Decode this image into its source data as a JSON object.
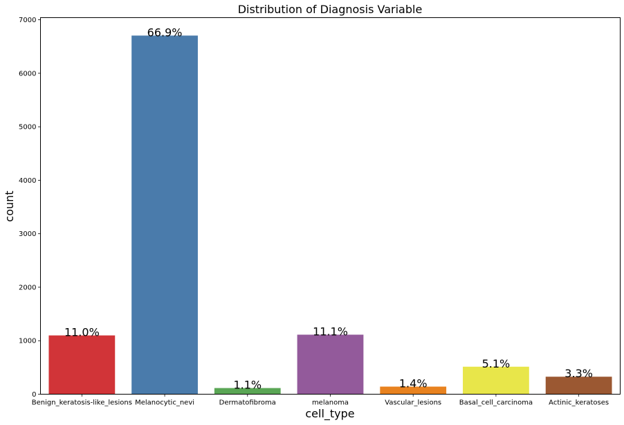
{
  "chart_data": {
    "type": "bar",
    "title": "Distribution of Diagnosis Variable",
    "xlabel": "cell_type",
    "ylabel": "count",
    "categories": [
      "Benign_keratosis-like_lesions",
      "Melanocytic_nevi",
      "Dermatofibroma",
      "melanoma",
      "Vascular_lesions",
      "Basal_cell_carcinoma",
      "Actinic_keratoses"
    ],
    "values": [
      1099,
      6705,
      115,
      1113,
      142,
      514,
      327
    ],
    "data_labels": [
      "11.0%",
      "66.9%",
      "1.1%",
      "11.1%",
      "1.4%",
      "5.1%",
      "3.3%"
    ],
    "colors": [
      "#d13438",
      "#4a7bab",
      "#5aa655",
      "#935a9b",
      "#e8821f",
      "#e8e64a",
      "#9b5832"
    ],
    "ylim": [
      0,
      7040
    ],
    "yticks": [
      0,
      1000,
      2000,
      3000,
      4000,
      5000,
      6000,
      7000
    ],
    "grid": false,
    "legend": "none"
  }
}
